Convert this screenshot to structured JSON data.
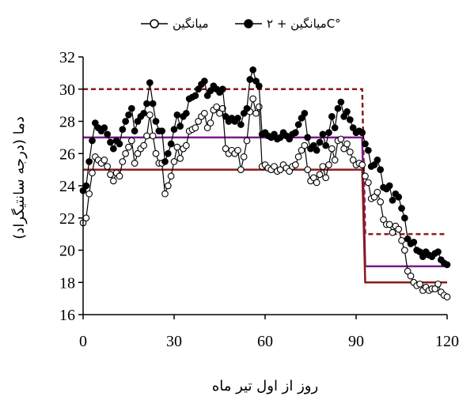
{
  "chart_data": {
    "type": "line",
    "xlabel": "روز از اول تیر ماه",
    "ylabel": "دما (درجه سانتیگراد)",
    "xlim": [
      0,
      120
    ],
    "ylim": [
      16,
      32
    ],
    "xticks": [
      0,
      30,
      60,
      90,
      120
    ],
    "yticks": [
      16,
      18,
      20,
      22,
      24,
      26,
      28,
      30,
      32
    ],
    "legend_position": "top-center",
    "series": [
      {
        "name": "میانگین",
        "marker": "open-circle",
        "color": "#000000",
        "x": [
          0,
          1,
          2,
          3,
          4,
          5,
          6,
          7,
          8,
          9,
          10,
          11,
          12,
          13,
          14,
          15,
          16,
          17,
          18,
          19,
          20,
          21,
          22,
          23,
          24,
          25,
          26,
          27,
          28,
          29,
          30,
          31,
          32,
          33,
          34,
          35,
          36,
          37,
          38,
          39,
          40,
          41,
          42,
          43,
          44,
          45,
          46,
          47,
          48,
          49,
          50,
          51,
          52,
          53,
          54,
          55,
          56,
          57,
          58,
          59,
          60,
          61,
          62,
          63,
          64,
          65,
          66,
          67,
          68,
          69,
          70,
          71,
          72,
          73,
          74,
          75,
          76,
          77,
          78,
          79,
          80,
          81,
          82,
          83,
          84,
          85,
          86,
          87,
          88,
          89,
          90,
          91,
          92,
          93,
          94,
          95,
          96,
          97,
          98,
          99,
          100,
          101,
          102,
          103,
          104,
          105,
          106,
          107,
          108,
          109,
          110,
          111,
          112,
          113,
          114,
          115,
          116,
          117,
          118,
          119,
          120
        ],
        "y": [
          21.7,
          22.0,
          23.5,
          24.8,
          25.8,
          25.6,
          25.4,
          25.6,
          25.2,
          24.7,
          24.3,
          24.8,
          24.6,
          25.5,
          26.0,
          26.4,
          26.8,
          25.4,
          26.0,
          26.3,
          26.5,
          27.1,
          28.4,
          27.1,
          26.0,
          25.4,
          25.4,
          23.5,
          24.0,
          24.6,
          25.5,
          26.4,
          25.7,
          26.3,
          26.5,
          27.4,
          27.5,
          27.6,
          28.0,
          28.3,
          28.5,
          27.6,
          27.9,
          28.7,
          28.9,
          28.5,
          28.8,
          26.3,
          26.0,
          26.2,
          26.0,
          26.2,
          25.0,
          25.8,
          26.8,
          28.6,
          29.4,
          28.5,
          28.9,
          25.2,
          25.3,
          25.1,
          25.0,
          25.2,
          24.9,
          25.0,
          25.3,
          25.1,
          24.9,
          25.2,
          25.3,
          25.8,
          26.2,
          26.5,
          25.0,
          24.3,
          24.5,
          24.2,
          24.7,
          25.2,
          24.5,
          25.3,
          26.3,
          25.6,
          26.8,
          26.9,
          26.3,
          26.6,
          26.1,
          25.6,
          25.3,
          25.4,
          25.3,
          24.6,
          24.2,
          23.2,
          23.3,
          23.6,
          23.0,
          21.9,
          21.6,
          21.6,
          21.1,
          21.5,
          21.3,
          20.6,
          20.0,
          18.7,
          18.4,
          18.0,
          17.8,
          17.9,
          17.5,
          17.7,
          17.5,
          17.6,
          17.6,
          17.9,
          17.4,
          17.2,
          17.1
        ]
      },
      {
        "name": "میانگین + ۲C°",
        "marker": "filled-circle",
        "color": "#000000",
        "x": [
          0,
          1,
          2,
          3,
          4,
          5,
          6,
          7,
          8,
          9,
          10,
          11,
          12,
          13,
          14,
          15,
          16,
          17,
          18,
          19,
          20,
          21,
          22,
          23,
          24,
          25,
          26,
          27,
          28,
          29,
          30,
          31,
          32,
          33,
          34,
          35,
          36,
          37,
          38,
          39,
          40,
          41,
          42,
          43,
          44,
          45,
          46,
          47,
          48,
          49,
          50,
          51,
          52,
          53,
          54,
          55,
          56,
          57,
          58,
          59,
          60,
          61,
          62,
          63,
          64,
          65,
          66,
          67,
          68,
          69,
          70,
          71,
          72,
          73,
          74,
          75,
          76,
          77,
          78,
          79,
          80,
          81,
          82,
          83,
          84,
          85,
          86,
          87,
          88,
          89,
          90,
          91,
          92,
          93,
          94,
          95,
          96,
          97,
          98,
          99,
          100,
          101,
          102,
          103,
          104,
          105,
          106,
          107,
          108,
          109,
          110,
          111,
          112,
          113,
          114,
          115,
          116,
          117,
          118,
          119,
          120
        ],
        "y": [
          23.7,
          24.0,
          25.5,
          26.8,
          27.9,
          27.6,
          27.4,
          27.6,
          27.2,
          26.7,
          26.3,
          26.8,
          26.6,
          27.5,
          28.0,
          28.4,
          28.8,
          27.4,
          28.0,
          28.3,
          28.5,
          29.1,
          30.4,
          29.1,
          28.0,
          27.4,
          27.4,
          25.5,
          26.0,
          26.6,
          27.5,
          28.4,
          27.7,
          28.3,
          28.5,
          29.4,
          29.5,
          29.6,
          30.0,
          30.3,
          30.5,
          29.6,
          29.9,
          30.2,
          30.0,
          29.8,
          30.0,
          28.3,
          28.0,
          28.2,
          28.0,
          28.2,
          27.8,
          28.5,
          28.8,
          30.6,
          31.2,
          30.5,
          30.2,
          27.2,
          27.3,
          27.1,
          27.0,
          27.2,
          26.9,
          27.0,
          27.3,
          27.1,
          26.9,
          27.2,
          27.3,
          27.8,
          28.2,
          28.5,
          27.0,
          26.3,
          26.5,
          26.2,
          26.7,
          27.2,
          26.5,
          27.3,
          28.3,
          27.6,
          28.8,
          29.2,
          28.3,
          28.6,
          28.1,
          27.6,
          27.3,
          27.4,
          27.3,
          26.6,
          26.2,
          25.2,
          25.3,
          25.6,
          25.0,
          23.9,
          23.8,
          24.0,
          23.1,
          23.5,
          23.3,
          22.6,
          22.0,
          20.7,
          20.4,
          20.5,
          20.0,
          19.9,
          19.6,
          19.9,
          19.7,
          19.6,
          19.8,
          19.9,
          19.4,
          19.2,
          19.1
        ]
      }
    ],
    "reference_lines": [
      {
        "color": "#8b1a1a",
        "style": "dashed",
        "x": [
          0,
          92,
          93,
          120
        ],
        "y": [
          30,
          30,
          21,
          21
        ]
      },
      {
        "color": "#7a1a8a",
        "style": "solid",
        "x": [
          0,
          92,
          93,
          120
        ],
        "y": [
          27,
          27,
          19,
          19
        ]
      },
      {
        "color": "#8b1a1a",
        "style": "solid",
        "x": [
          0,
          92,
          93,
          120
        ],
        "y": [
          25,
          25,
          18,
          18
        ]
      }
    ]
  }
}
